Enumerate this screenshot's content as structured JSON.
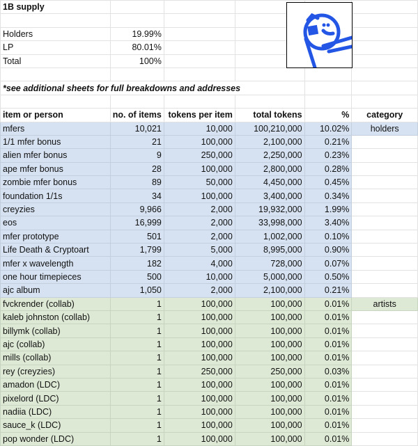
{
  "title": "1B supply",
  "summary": [
    {
      "label": "Holders",
      "value": "19.99%"
    },
    {
      "label": "LP",
      "value": "80.01%"
    },
    {
      "label": "Total",
      "value": "100%"
    }
  ],
  "note": "*see additional sheets for full breakdowns and addresses",
  "headers": [
    "item or person",
    "no. of items",
    "tokens per item",
    "total tokens",
    "%",
    "category"
  ],
  "rows": [
    [
      "mfers",
      "10,021",
      "10,000",
      "100,210,000",
      "10.02%",
      "holders"
    ],
    [
      "1/1 mfer bonus",
      "21",
      "100,000",
      "2,100,000",
      "0.21%",
      ""
    ],
    [
      "alien mfer bonus",
      "9",
      "250,000",
      "2,250,000",
      "0.23%",
      ""
    ],
    [
      "ape mfer bonus",
      "28",
      "100,000",
      "2,800,000",
      "0.28%",
      ""
    ],
    [
      "zombie mfer bonus",
      "89",
      "50,000",
      "4,450,000",
      "0.45%",
      ""
    ],
    [
      "foundation 1/1s",
      "34",
      "100,000",
      "3,400,000",
      "0.34%",
      ""
    ],
    [
      "creyzies",
      "9,966",
      "2,000",
      "19,932,000",
      "1.99%",
      ""
    ],
    [
      "eos",
      "16,999",
      "2,000",
      "33,998,000",
      "3.40%",
      ""
    ],
    [
      "mfer prototype",
      "501",
      "2,000",
      "1,002,000",
      "0.10%",
      ""
    ],
    [
      "Life Death & Cryptoart",
      "1,799",
      "5,000",
      "8,995,000",
      "0.90%",
      ""
    ],
    [
      "mfer x wavelength",
      "182",
      "4,000",
      "728,000",
      "0.07%",
      ""
    ],
    [
      "one hour timepieces",
      "500",
      "10,000",
      "5,000,000",
      "0.50%",
      ""
    ],
    [
      "ajc album",
      "1,050",
      "2,000",
      "2,100,000",
      "0.21%",
      ""
    ],
    [
      "fvckrender (collab)",
      "1",
      "100,000",
      "100,000",
      "0.01%",
      "artists"
    ],
    [
      "kaleb johnston (collab)",
      "1",
      "100,000",
      "100,000",
      "0.01%",
      ""
    ],
    [
      "billymk (collab)",
      "1",
      "100,000",
      "100,000",
      "0.01%",
      ""
    ],
    [
      "ajc (collab)",
      "1",
      "100,000",
      "100,000",
      "0.01%",
      ""
    ],
    [
      "mills (collab)",
      "1",
      "100,000",
      "100,000",
      "0.01%",
      ""
    ],
    [
      "rey (creyzies)",
      "1",
      "250,000",
      "250,000",
      "0.03%",
      ""
    ],
    [
      "amadon (LDC)",
      "1",
      "100,000",
      "100,000",
      "0.01%",
      ""
    ],
    [
      "pixelord (LDC)",
      "1",
      "100,000",
      "100,000",
      "0.01%",
      ""
    ],
    [
      "nadiia (LDC)",
      "1",
      "100,000",
      "100,000",
      "0.01%",
      ""
    ],
    [
      "sauce_k (LDC)",
      "1",
      "100,000",
      "100,000",
      "0.01%",
      ""
    ],
    [
      "pop wonder (LDC)",
      "1",
      "100,000",
      "100,000",
      "0.01%",
      ""
    ]
  ],
  "group_colors": {
    "holders": "#d6e2f1",
    "artists": "#dde9d5"
  }
}
